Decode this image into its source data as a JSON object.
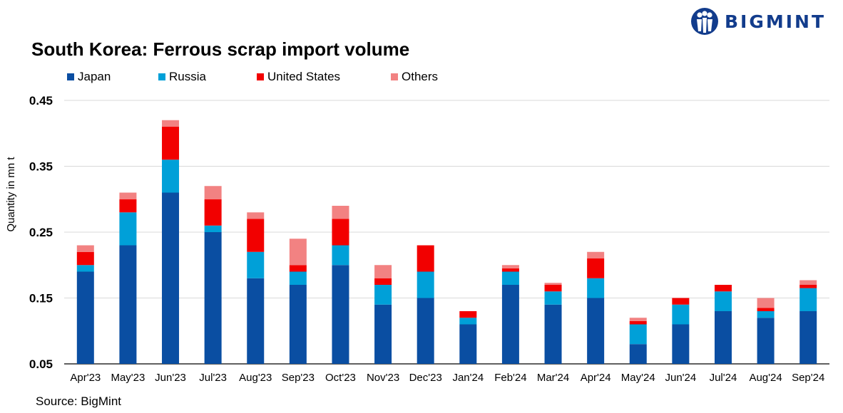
{
  "brand": {
    "name": "BIGMINT",
    "color": "#123c8c"
  },
  "title": "South Korea: Ferrous scrap import volume",
  "source": "Source: BigMint",
  "chart_data": {
    "type": "bar",
    "stacked": true,
    "categories": [
      "Apr'23",
      "May'23",
      "Jun'23",
      "Jul'23",
      "Aug'23",
      "Sep'23",
      "Oct'23",
      "Nov'23",
      "Dec'23",
      "Jan'24",
      "Feb'24",
      "Mar'24",
      "Apr'24",
      "May'24",
      "Jun'24",
      "Jul'24",
      "Aug'24",
      "Sep'24"
    ],
    "series": [
      {
        "name": "Japan",
        "color": "#0a4ea2",
        "values": [
          0.19,
          0.23,
          0.31,
          0.25,
          0.18,
          0.17,
          0.2,
          0.14,
          0.15,
          0.11,
          0.17,
          0.14,
          0.15,
          0.08,
          0.11,
          0.13,
          0.12,
          0.13
        ]
      },
      {
        "name": "Russia",
        "color": "#00a0d8",
        "values": [
          0.01,
          0.05,
          0.05,
          0.01,
          0.04,
          0.02,
          0.03,
          0.03,
          0.04,
          0.01,
          0.02,
          0.02,
          0.03,
          0.03,
          0.03,
          0.03,
          0.01,
          0.035
        ]
      },
      {
        "name": "United States",
        "color": "#f20000",
        "values": [
          0.02,
          0.02,
          0.05,
          0.04,
          0.05,
          0.01,
          0.04,
          0.01,
          0.04,
          0.01,
          0.005,
          0.01,
          0.03,
          0.005,
          0.01,
          0.01,
          0.005,
          0.005
        ]
      },
      {
        "name": "Others",
        "color": "#f28282",
        "values": [
          0.01,
          0.01,
          0.01,
          0.02,
          0.01,
          0.04,
          0.02,
          0.02,
          0.0,
          0.0,
          0.005,
          0.003,
          0.01,
          0.005,
          0.0,
          0.0,
          0.015,
          0.007
        ]
      }
    ],
    "ylabel": "Quantity in mn t",
    "xlabel": "",
    "ylim": [
      0.05,
      0.45
    ],
    "yticks": [
      "0.05",
      "0.15",
      "0.25",
      "0.35",
      "0.45"
    ],
    "grid": true,
    "legend_position": "top-left"
  }
}
